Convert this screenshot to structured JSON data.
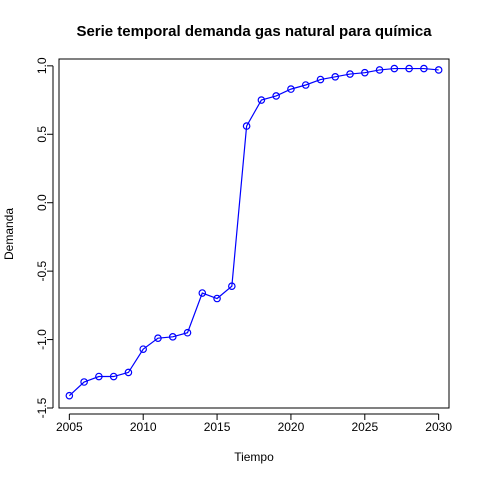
{
  "chart_data": {
    "type": "line",
    "title": "Serie temporal demanda gas natural para química",
    "xlabel": "Tiempo",
    "ylabel": "Demanda",
    "xlim": [
      2004.3,
      2030.7
    ],
    "ylim": [
      -1.5,
      1.05
    ],
    "x_ticks": [
      2005,
      2010,
      2015,
      2020,
      2025,
      2030
    ],
    "x_tick_labels": [
      "2005",
      "2010",
      "2015",
      "2020",
      "2025",
      "2030"
    ],
    "y_ticks": [
      -1.5,
      -1.0,
      -0.5,
      0.0,
      0.5,
      1.0
    ],
    "y_tick_labels": [
      "-1.5",
      "-1.0",
      "-0.5",
      "0.0",
      "0.5",
      "1.0"
    ],
    "grid": false,
    "legend": "none",
    "series": [
      {
        "color": "#0000ff",
        "marker": "open-circle",
        "x": [
          2005,
          2006,
          2007,
          2008,
          2009,
          2010,
          2011,
          2012,
          2013,
          2014,
          2015,
          2016,
          2017,
          2018,
          2019,
          2020,
          2021,
          2022,
          2023,
          2024,
          2025,
          2026,
          2027,
          2028,
          2029,
          2030
        ],
        "y": [
          -1.41,
          -1.31,
          -1.27,
          -1.27,
          -1.24,
          -1.07,
          -0.99,
          -0.98,
          -0.95,
          -0.66,
          -0.7,
          -0.61,
          0.56,
          0.75,
          0.78,
          0.83,
          0.86,
          0.9,
          0.92,
          0.94,
          0.95,
          0.97,
          0.98,
          0.98,
          0.98,
          0.97
        ]
      }
    ]
  }
}
